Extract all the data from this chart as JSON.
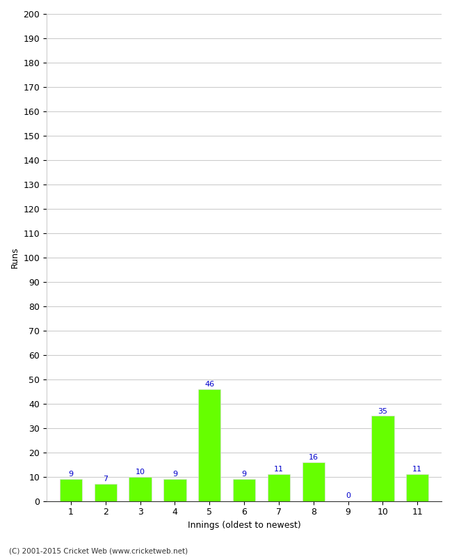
{
  "innings": [
    1,
    2,
    3,
    4,
    5,
    6,
    7,
    8,
    9,
    10,
    11
  ],
  "values": [
    9,
    7,
    10,
    9,
    46,
    9,
    11,
    16,
    0,
    35,
    11
  ],
  "bar_color": "#66ff00",
  "bar_edge_color": "#dddddd",
  "label_color": "#0000cc",
  "xlabel": "Innings (oldest to newest)",
  "ylabel": "Runs",
  "ylim": [
    0,
    200
  ],
  "yticks": [
    0,
    10,
    20,
    30,
    40,
    50,
    60,
    70,
    80,
    90,
    100,
    110,
    120,
    130,
    140,
    150,
    160,
    170,
    180,
    190,
    200
  ],
  "footer": "(C) 2001-2015 Cricket Web (www.cricketweb.net)",
  "background_color": "#ffffff",
  "grid_color": "#cccccc",
  "label_fontsize": 8,
  "axis_fontsize": 9,
  "bar_width": 0.65
}
